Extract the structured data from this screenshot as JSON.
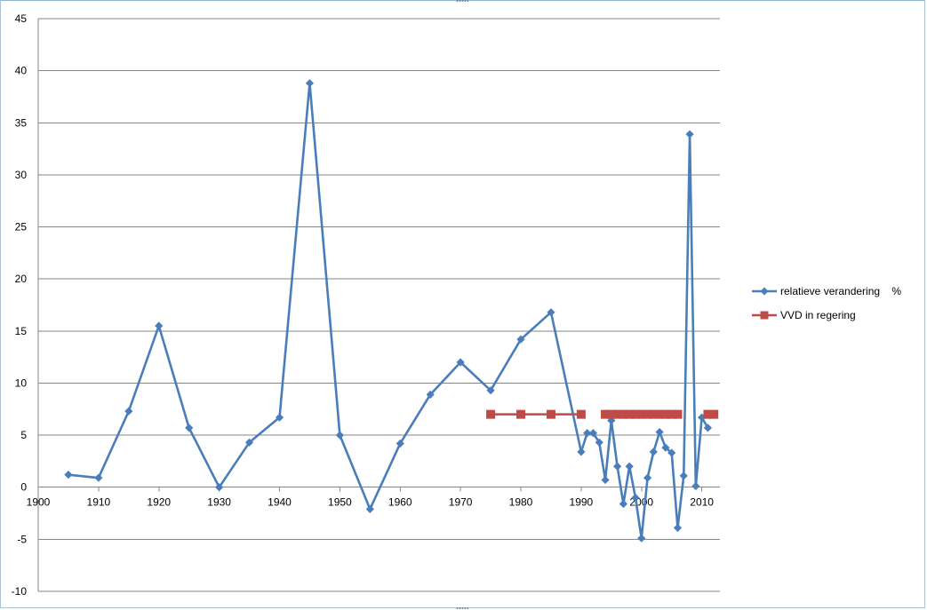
{
  "chart_data": {
    "type": "line",
    "title": "",
    "xlabel": "",
    "ylabel": "",
    "xlim": [
      1900,
      2013
    ],
    "ylim": [
      -10,
      45
    ],
    "x_ticks": [
      "1900",
      "1910",
      "1920",
      "1930",
      "1940",
      "1950",
      "1960",
      "1970",
      "1980",
      "1990",
      "2000",
      "2010"
    ],
    "y_ticks": [
      "-10",
      "-5",
      "0",
      "5",
      "10",
      "15",
      "20",
      "25",
      "30",
      "35",
      "40",
      "45"
    ],
    "grid": "horizontal",
    "legend_position": "right",
    "series": [
      {
        "name": "relatieve verandering    %",
        "color": "#4a7ebb",
        "marker": "diamond",
        "x": [
          1905,
          1910,
          1915,
          1920,
          1925,
          1930,
          1935,
          1940,
          1945,
          1950,
          1955,
          1960,
          1965,
          1970,
          1975,
          1980,
          1985,
          1990,
          1991,
          1992,
          1993,
          1994,
          1995,
          1996,
          1997,
          1998,
          1999,
          2000,
          2001,
          2002,
          2003,
          2004,
          2005,
          2006,
          2007,
          2008,
          2009,
          2010,
          2011
        ],
        "y": [
          1.2,
          0.9,
          7.3,
          15.5,
          5.7,
          0.0,
          4.3,
          6.7,
          38.8,
          5.0,
          -2.1,
          4.2,
          8.9,
          12.0,
          9.3,
          14.2,
          16.8,
          3.4,
          5.2,
          5.2,
          4.3,
          0.7,
          6.4,
          2.0,
          -1.6,
          2.0,
          -1.0,
          -4.9,
          0.9,
          3.4,
          5.3,
          3.8,
          3.3,
          -3.9,
          1.1,
          33.9,
          0.1,
          6.7,
          5.7
        ]
      },
      {
        "name": "VVD in regering",
        "color": "#be4b48",
        "marker": "square",
        "segments": [
          {
            "x": [
              1975,
              1980,
              1985,
              1990
            ],
            "y": [
              7,
              7,
              7,
              7
            ]
          },
          {
            "x": [
              1994,
              1995,
              1996,
              1997,
              1998,
              1999,
              2000,
              2001,
              2002,
              2003,
              2004,
              2005,
              2006
            ],
            "y": [
              7,
              7,
              7,
              7,
              7,
              7,
              7,
              7,
              7,
              7,
              7,
              7,
              7
            ]
          },
          {
            "x": [
              2011,
              2012
            ],
            "y": [
              7,
              7
            ]
          }
        ]
      }
    ]
  }
}
